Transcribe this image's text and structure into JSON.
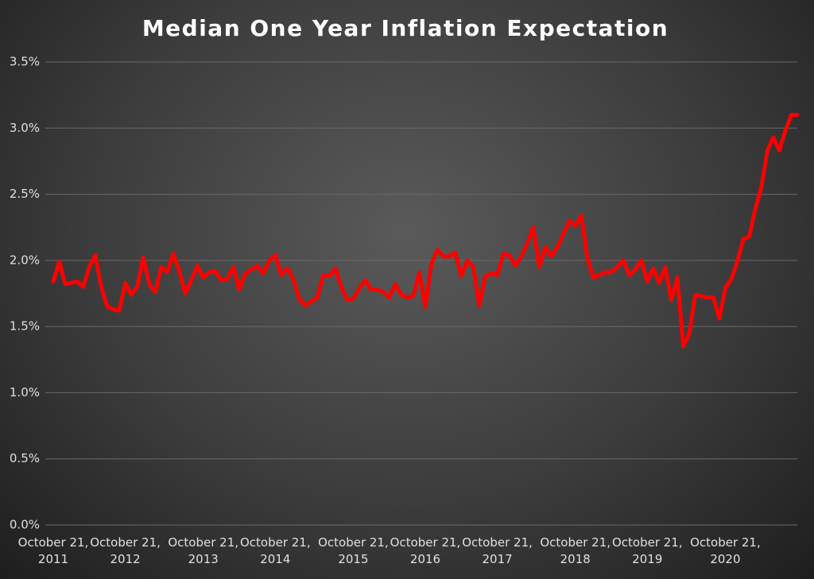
{
  "chart_data": {
    "type": "line",
    "title": "Median One Year Inflation Expectation",
    "categories": [
      "October 21, 2011",
      null,
      null,
      null,
      null,
      null,
      null,
      null,
      null,
      null,
      null,
      null,
      "October 21, 2012",
      null,
      null,
      null,
      null,
      null,
      null,
      null,
      null,
      null,
      null,
      null,
      null,
      "October 21, 2013",
      null,
      null,
      null,
      null,
      null,
      null,
      null,
      null,
      null,
      null,
      null,
      "October 21, 2014",
      null,
      null,
      null,
      null,
      null,
      null,
      null,
      null,
      null,
      null,
      null,
      null,
      "October 21, 2015",
      null,
      null,
      null,
      null,
      null,
      null,
      null,
      null,
      null,
      null,
      null,
      "October 21, 2016",
      null,
      null,
      null,
      null,
      null,
      null,
      null,
      null,
      null,
      null,
      null,
      "October 21, 2017",
      null,
      null,
      null,
      null,
      null,
      null,
      null,
      null,
      null,
      null,
      null,
      null,
      "October 21, 2018",
      null,
      null,
      null,
      null,
      null,
      null,
      null,
      null,
      null,
      null,
      null,
      "October 21, 2019",
      null,
      null,
      null,
      null,
      null,
      null,
      null,
      null,
      null,
      null,
      null,
      null,
      "October 21, 2020",
      null,
      null,
      null,
      null,
      null,
      null,
      null,
      null,
      null,
      null,
      null,
      null
    ],
    "values": [
      1.84,
      1.99,
      1.82,
      1.83,
      1.84,
      1.8,
      1.95,
      2.04,
      1.8,
      1.65,
      1.63,
      1.62,
      1.83,
      1.74,
      1.8,
      2.02,
      1.82,
      1.76,
      1.95,
      1.91,
      2.05,
      1.92,
      1.75,
      1.85,
      1.96,
      1.87,
      1.91,
      1.92,
      1.85,
      1.86,
      1.95,
      1.78,
      1.9,
      1.93,
      1.96,
      1.9,
      2.0,
      2.04,
      1.89,
      1.94,
      1.86,
      1.71,
      1.66,
      1.69,
      1.72,
      1.89,
      1.88,
      1.94,
      1.8,
      1.7,
      1.71,
      1.79,
      1.85,
      1.78,
      1.78,
      1.76,
      1.72,
      1.82,
      1.74,
      1.72,
      1.73,
      1.91,
      1.65,
      1.97,
      2.08,
      2.03,
      2.03,
      2.06,
      1.88,
      2.0,
      1.95,
      1.66,
      1.88,
      1.9,
      1.89,
      2.05,
      2.04,
      1.96,
      2.03,
      2.13,
      2.25,
      1.95,
      2.1,
      2.03,
      2.1,
      2.2,
      2.3,
      2.26,
      2.34,
      2.02,
      1.87,
      1.89,
      1.91,
      1.91,
      1.95,
      2.0,
      1.89,
      1.93,
      2.0,
      1.84,
      1.94,
      1.83,
      1.95,
      1.7,
      1.87,
      1.35,
      1.45,
      1.74,
      1.73,
      1.72,
      1.72,
      1.56,
      1.79,
      1.86,
      1.99,
      2.16,
      2.18,
      2.39,
      2.55,
      2.83,
      2.93,
      2.83,
      2.98,
      3.1,
      3.1
    ],
    "color": "#ff0000",
    "ylim": [
      0,
      3.5
    ],
    "yticks": [
      {
        "value": 0,
        "label": "0.0%"
      },
      {
        "value": 0.5,
        "label": "0.5%"
      },
      {
        "value": 1,
        "label": "1.0%"
      },
      {
        "value": 1.5,
        "label": "1.5%"
      },
      {
        "value": 2,
        "label": "2.0%"
      },
      {
        "value": 2.5,
        "label": "2.5%"
      },
      {
        "value": 3,
        "label": "3.0%"
      },
      {
        "value": 3.5,
        "label": "3.5%"
      }
    ],
    "grid": true
  }
}
